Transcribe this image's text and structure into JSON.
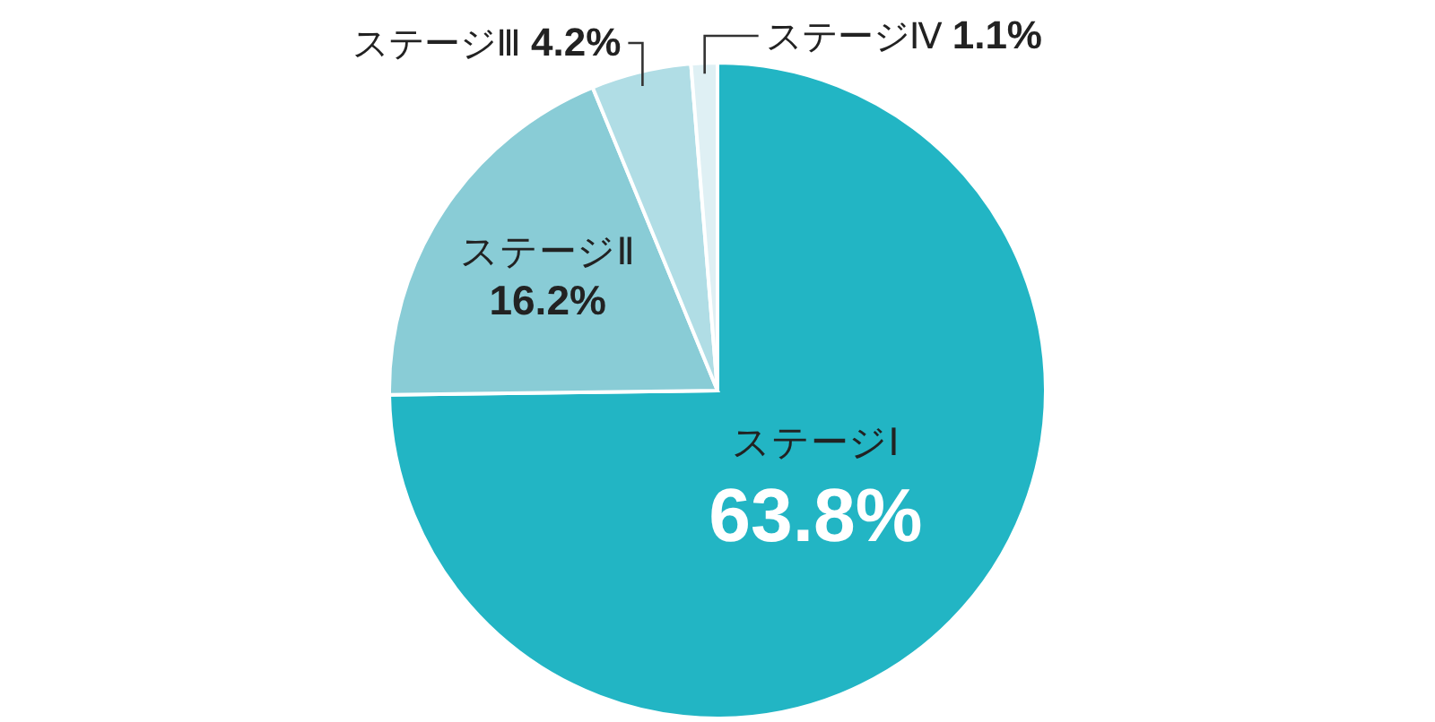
{
  "chart_data": {
    "type": "pie",
    "categories": [
      "ステージⅠ",
      "ステージⅡ",
      "ステージⅢ",
      "ステージⅣ"
    ],
    "values": [
      63.8,
      16.2,
      4.2,
      1.1
    ],
    "colors": [
      "#22b5c4",
      "#89ccd6",
      "#b0dde5",
      "#dff0f4"
    ],
    "value_labels": [
      "63.8%",
      "16.2%",
      "4.2%",
      "1.1%"
    ]
  }
}
